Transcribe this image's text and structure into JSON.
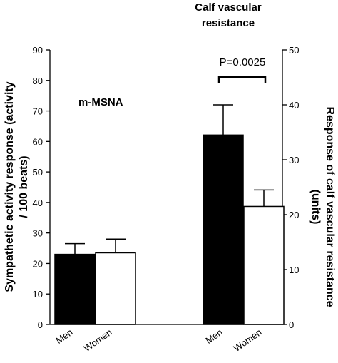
{
  "chart_data": [
    {
      "type": "bar",
      "label": "m-MSNA",
      "categories": [
        "Men",
        "Women"
      ],
      "values": [
        23,
        23.5
      ],
      "errors": [
        3.5,
        4.5
      ],
      "colors": [
        "#000000",
        "#ffffff"
      ],
      "ylabel": "Sympathetic activity response (activity / 100 beats)",
      "ylim": [
        0,
        90
      ],
      "yticks": [
        0,
        10,
        20,
        30,
        40,
        50,
        60,
        70,
        80,
        90
      ],
      "axis": "left"
    },
    {
      "type": "bar",
      "title": "Calf vascular resistance",
      "categories": [
        "Men",
        "Women"
      ],
      "values": [
        34.5,
        21.5
      ],
      "errors": [
        5.5,
        3
      ],
      "colors": [
        "#000000",
        "#ffffff"
      ],
      "ylabel": "Response of calf vascular resistance (units)",
      "ylim": [
        0,
        50
      ],
      "yticks": [
        0,
        10,
        20,
        30,
        40,
        50
      ],
      "axis": "right",
      "annotation": "P=0.0025"
    }
  ]
}
